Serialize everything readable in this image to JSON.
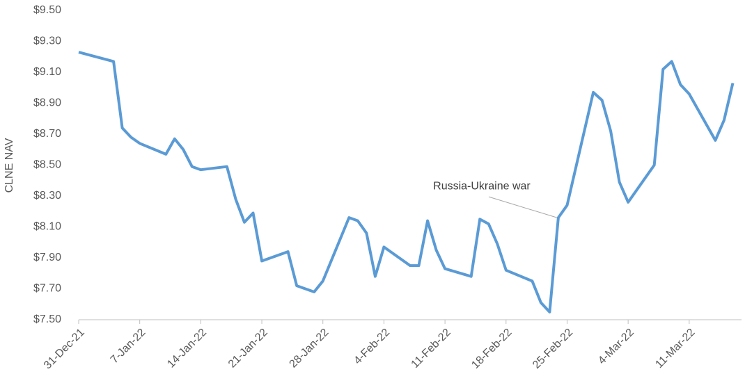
{
  "chart_data": {
    "type": "line",
    "y_label": "CLNE NAV",
    "color": "#5b9bd5",
    "grid": false,
    "x": [
      "2021-12-31",
      "2022-01-04",
      "2022-01-05",
      "2022-01-06",
      "2022-01-07",
      "2022-01-10",
      "2022-01-11",
      "2022-01-12",
      "2022-01-13",
      "2022-01-14",
      "2022-01-17",
      "2022-01-18",
      "2022-01-19",
      "2022-01-20",
      "2022-01-21",
      "2022-01-24",
      "2022-01-25",
      "2022-01-27",
      "2022-01-28",
      "2022-01-31",
      "2022-02-01",
      "2022-02-02",
      "2022-02-03",
      "2022-02-04",
      "2022-02-07",
      "2022-02-08",
      "2022-02-09",
      "2022-02-10",
      "2022-02-11",
      "2022-02-14",
      "2022-02-15",
      "2022-02-16",
      "2022-02-17",
      "2022-02-18",
      "2022-02-21",
      "2022-02-22",
      "2022-02-23",
      "2022-02-24",
      "2022-02-25",
      "2022-02-28",
      "2022-03-01",
      "2022-03-02",
      "2022-03-03",
      "2022-03-04",
      "2022-03-07",
      "2022-03-08",
      "2022-03-09",
      "2022-03-10",
      "2022-03-11",
      "2022-03-14",
      "2022-03-15",
      "2022-03-16"
    ],
    "values": [
      9.23,
      9.17,
      8.74,
      8.68,
      8.64,
      8.57,
      8.67,
      8.6,
      8.49,
      8.47,
      8.49,
      8.28,
      8.13,
      8.19,
      7.88,
      7.94,
      7.72,
      7.68,
      7.75,
      8.16,
      8.14,
      8.06,
      7.78,
      7.97,
      7.85,
      7.85,
      8.14,
      7.95,
      7.83,
      7.78,
      8.15,
      8.12,
      7.99,
      7.82,
      7.75,
      7.61,
      7.55,
      8.16,
      8.24,
      8.97,
      8.92,
      8.72,
      8.39,
      8.26,
      8.5,
      9.12,
      9.17,
      9.02,
      8.96,
      8.66,
      8.79,
      9.03
    ],
    "xlim": [
      "2021-12-31",
      "2022-03-17"
    ],
    "xticks": [
      {
        "value": "2021-12-31",
        "label": "31-Dec-21"
      },
      {
        "value": "2022-01-07",
        "label": "7-Jan-22"
      },
      {
        "value": "2022-01-14",
        "label": "14-Jan-22"
      },
      {
        "value": "2022-01-21",
        "label": "21-Jan-22"
      },
      {
        "value": "2022-01-28",
        "label": "28-Jan-22"
      },
      {
        "value": "2022-02-04",
        "label": "4-Feb-22"
      },
      {
        "value": "2022-02-11",
        "label": "11-Feb-22"
      },
      {
        "value": "2022-02-18",
        "label": "18-Feb-22"
      },
      {
        "value": "2022-02-25",
        "label": "25-Feb-22"
      },
      {
        "value": "2022-03-04",
        "label": "4-Mar-22"
      },
      {
        "value": "2022-03-11",
        "label": "11-Mar-22"
      }
    ],
    "ylim": [
      7.5,
      9.5
    ],
    "yticks": [
      {
        "value": 7.5,
        "label": "$7.50"
      },
      {
        "value": 7.7,
        "label": "$7.70"
      },
      {
        "value": 7.9,
        "label": "$7.90"
      },
      {
        "value": 8.1,
        "label": "$8.10"
      },
      {
        "value": 8.3,
        "label": "$8.30"
      },
      {
        "value": 8.5,
        "label": "$8.50"
      },
      {
        "value": 8.7,
        "label": "$8.70"
      },
      {
        "value": 8.9,
        "label": "$8.90"
      },
      {
        "value": 9.1,
        "label": "$9.10"
      },
      {
        "value": 9.3,
        "label": "$9.30"
      },
      {
        "value": 9.5,
        "label": "$9.50"
      }
    ],
    "annotations": [
      {
        "text": "Russia-Ukraine war",
        "x": "2022-02-24"
      }
    ]
  }
}
